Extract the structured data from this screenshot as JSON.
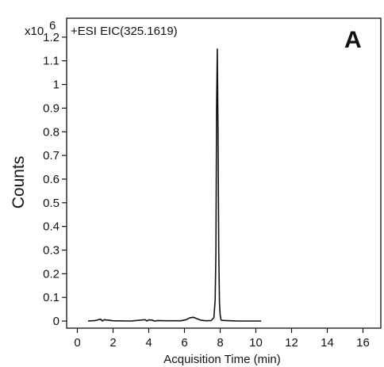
{
  "chart_data": {
    "type": "line",
    "panel_label": "A",
    "trace_label": "+ESI EIC(325.1619)",
    "scale_label": "x10",
    "scale_exponent": "6",
    "xlabel": "Acquisition Time (min)",
    "ylabel": "Counts",
    "xlim": [
      -0.6,
      17.0
    ],
    "ylim": [
      -0.03,
      1.28
    ],
    "x_ticks": [
      "0",
      "2",
      "4",
      "6",
      "8",
      "10",
      "12",
      "14",
      "16"
    ],
    "x_tick_values": [
      0,
      2,
      4,
      6,
      8,
      10,
      12,
      14,
      16
    ],
    "y_ticks": [
      "0",
      "0.1",
      "0.2",
      "0.3",
      "0.4",
      "0.5",
      "0.6",
      "0.7",
      "0.8",
      "0.9",
      "1",
      "1.1",
      "1.2"
    ],
    "y_tick_values": [
      0,
      0.1,
      0.2,
      0.3,
      0.4,
      0.5,
      0.6,
      0.7,
      0.8,
      0.9,
      1.0,
      1.1,
      1.2
    ],
    "grid": false,
    "legend": "none",
    "line_color": "#111111",
    "series": [
      {
        "x": [
          0.6,
          1.0,
          1.3,
          1.4,
          1.5,
          2.0,
          3.0,
          3.8,
          3.9,
          4.0,
          4.2,
          4.3,
          4.5,
          5.0,
          5.8,
          6.1,
          6.3,
          6.5,
          6.7,
          6.9,
          7.2,
          7.5,
          7.65,
          7.72,
          7.76,
          7.8,
          7.84,
          7.88,
          7.92,
          7.96,
          8.0,
          8.05,
          8.1,
          8.3,
          8.6,
          9.0,
          9.5,
          10.0,
          10.3
        ],
        "y": [
          0.0,
          0.002,
          0.008,
          0.0,
          0.006,
          0.001,
          0.0,
          0.006,
          0.0,
          0.005,
          0.004,
          0.0,
          0.002,
          0.001,
          0.001,
          0.006,
          0.014,
          0.016,
          0.01,
          0.004,
          0.001,
          0.002,
          0.015,
          0.09,
          0.28,
          0.9,
          1.15,
          0.8,
          0.3,
          0.08,
          0.025,
          0.005,
          0.003,
          0.002,
          0.001,
          0.0,
          0.0,
          0.0,
          0.0
        ]
      }
    ]
  }
}
